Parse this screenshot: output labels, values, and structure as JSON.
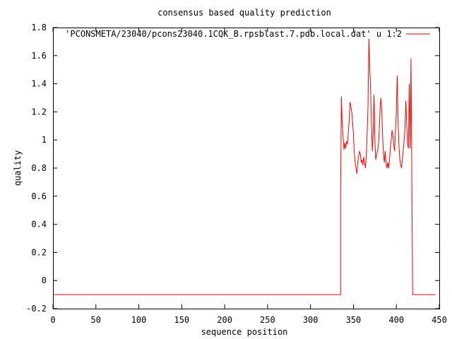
{
  "chart_data": {
    "type": "line",
    "title": "consensus based quality prediction",
    "xlabel": "sequence position",
    "ylabel": "quality",
    "xlim": [
      0,
      450
    ],
    "ylim": [
      -0.2,
      1.8
    ],
    "xticks": [
      0,
      50,
      100,
      150,
      200,
      250,
      300,
      350,
      400,
      450
    ],
    "yticks": [
      -0.2,
      0,
      0.2,
      0.4,
      0.6,
      0.8,
      1,
      1.2,
      1.4,
      1.6,
      1.8
    ],
    "xtick_labels": [
      "0",
      "50",
      "100",
      "150",
      "200",
      "250",
      "300",
      "350",
      "400",
      "450"
    ],
    "ytick_labels": [
      "-0.2",
      "0",
      "0.2",
      "0.4",
      "0.6",
      "0.8",
      "1",
      "1.2",
      "1.4",
      "1.6",
      "1.8"
    ],
    "grid": false,
    "legend_position": "top-right",
    "series": [
      {
        "name": "'PCONSMETA/23040/pcons23040.1CQK_B.rpsblast.7.pdb.local.dat' u 1:2",
        "color": "#ff0000",
        "x": [
          1,
          335,
          335,
          336,
          337,
          338,
          339,
          340,
          341,
          342,
          343,
          344,
          345,
          346,
          347,
          348,
          349,
          350,
          351,
          352,
          353,
          354,
          355,
          356,
          357,
          358,
          359,
          360,
          361,
          362,
          363,
          364,
          365,
          366,
          367,
          368,
          369,
          370,
          371,
          372,
          373,
          374,
          375,
          376,
          377,
          378,
          379,
          380,
          381,
          382,
          383,
          384,
          385,
          386,
          387,
          388,
          389,
          390,
          391,
          392,
          393,
          394,
          395,
          396,
          397,
          398,
          399,
          400,
          401,
          402,
          403,
          404,
          405,
          406,
          407,
          408,
          409,
          410,
          411,
          412,
          413,
          414,
          415,
          416,
          417,
          418,
          419,
          420,
          421,
          422,
          423,
          424,
          425,
          426,
          427,
          428,
          429,
          430,
          431,
          432,
          433,
          434,
          445
        ],
        "y": [
          -0.1,
          -0.1,
          0.6,
          1.31,
          1.1,
          1.02,
          0.93,
          0.98,
          0.94,
          0.99,
          0.97,
          1.05,
          1.14,
          1.27,
          1.24,
          1.2,
          1.13,
          1.05,
          0.9,
          0.84,
          0.8,
          0.76,
          0.84,
          0.88,
          0.92,
          0.9,
          0.84,
          0.86,
          0.82,
          0.88,
          0.84,
          0.8,
          0.9,
          1.05,
          1.25,
          1.72,
          1.52,
          1.35,
          1.1,
          0.92,
          1.05,
          1.32,
          1.0,
          0.86,
          0.9,
          0.92,
          0.96,
          1.06,
          1.22,
          1.3,
          1.2,
          1.02,
          0.9,
          0.84,
          0.92,
          0.84,
          0.8,
          0.84,
          0.8,
          0.86,
          0.94,
          1.0,
          1.07,
          1.03,
          0.96,
          0.92,
          1.08,
          1.2,
          1.46,
          1.12,
          0.96,
          0.86,
          0.82,
          0.8,
          0.86,
          0.92,
          1.0,
          1.08,
          1.28,
          1.12,
          0.98,
          0.94,
          1.4,
          0.94,
          1.58,
          0.75,
          -0.1,
          -0.1,
          -0.1,
          -0.1,
          -0.1,
          -0.1,
          -0.1,
          -0.1,
          -0.1,
          -0.1,
          -0.1,
          -0.1,
          -0.1,
          -0.1,
          -0.1,
          -0.1,
          -0.1
        ]
      }
    ]
  }
}
